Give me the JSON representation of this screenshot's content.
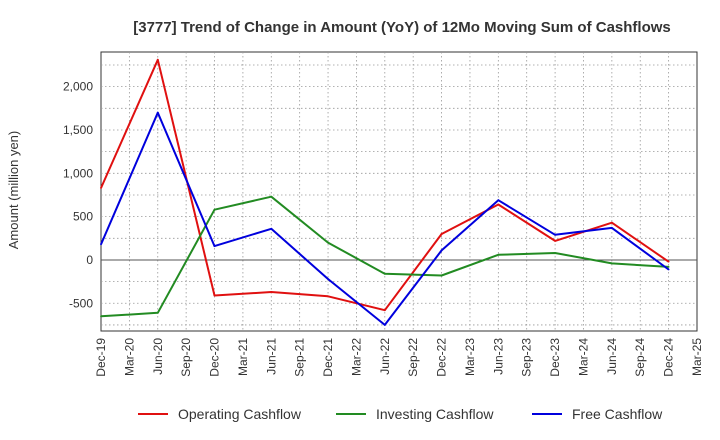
{
  "chart_data": {
    "type": "line",
    "title": "[3777]  Trend of Change in Amount (YoY) of 12Mo Moving Sum of Cashflows",
    "xlabel": "",
    "ylabel": "Amount (million yen)",
    "ylim": [
      -820,
      2400
    ],
    "yticks": [
      2000,
      1500,
      1000,
      500,
      0,
      -500
    ],
    "ytick_labels": [
      "2,000",
      "1,500",
      "1,000",
      "500",
      "0",
      "-500"
    ],
    "categories": [
      "Dec-19",
      "Mar-20",
      "Jun-20",
      "Sep-20",
      "Dec-20",
      "Mar-21",
      "Jun-21",
      "Sep-21",
      "Dec-21",
      "Mar-22",
      "Jun-22",
      "Sep-22",
      "Dec-22",
      "Mar-23",
      "Jun-23",
      "Sep-23",
      "Dec-23",
      "Mar-24",
      "Jun-24",
      "Sep-24",
      "Dec-24",
      "Mar-25"
    ],
    "series": [
      {
        "name": "Operating Cashflow",
        "color": "#e01010",
        "values": [
          830,
          null,
          2310,
          null,
          -410,
          null,
          -370,
          null,
          -420,
          null,
          -580,
          null,
          300,
          null,
          640,
          null,
          220,
          null,
          430,
          null,
          -20,
          null
        ]
      },
      {
        "name": "Investing Cashflow",
        "color": "#228b22",
        "values": [
          -650,
          null,
          -610,
          null,
          580,
          null,
          730,
          null,
          200,
          null,
          -160,
          null,
          -180,
          null,
          60,
          null,
          80,
          null,
          -40,
          null,
          -80,
          null
        ]
      },
      {
        "name": "Free Cashflow",
        "color": "#0000dd",
        "values": [
          180,
          null,
          1700,
          null,
          160,
          null,
          360,
          null,
          -220,
          null,
          -750,
          null,
          110,
          null,
          690,
          null,
          290,
          null,
          370,
          null,
          -110,
          null
        ]
      }
    ],
    "grid": true,
    "legend": "bottom"
  }
}
